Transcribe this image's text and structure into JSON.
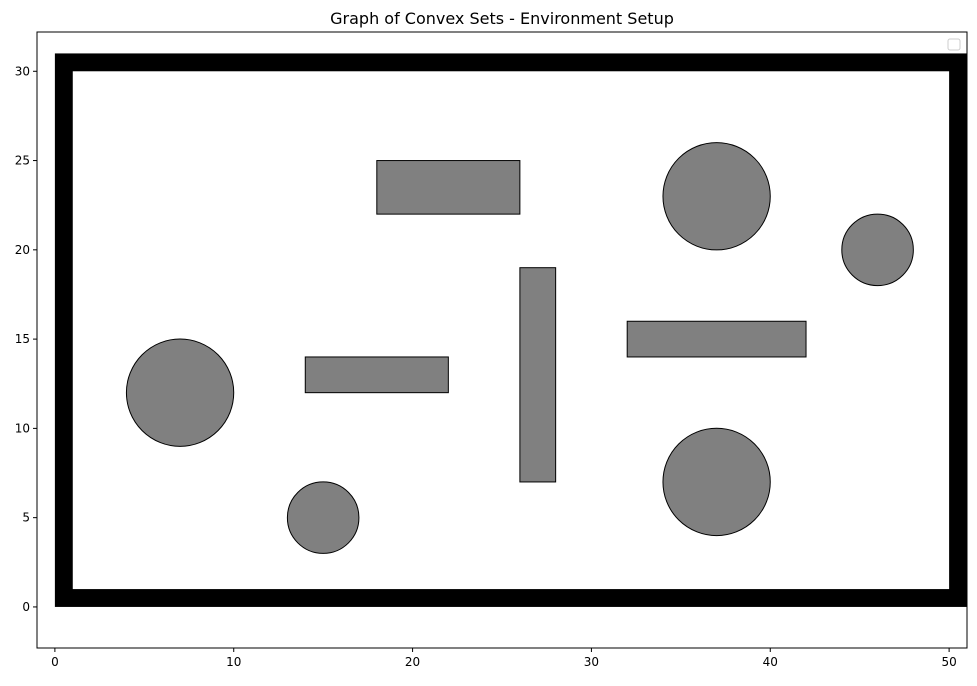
{
  "chart_data": {
    "type": "scatter",
    "title": "Graph of Convex Sets - Environment Setup",
    "xlabel": "",
    "ylabel": "",
    "xlim": [
      -1,
      51
    ],
    "ylim": [
      -2.3,
      32.2
    ],
    "x_ticks": [
      0,
      10,
      20,
      30,
      40,
      50
    ],
    "y_ticks": [
      0,
      5,
      10,
      15,
      20,
      25,
      30
    ],
    "grid": false,
    "legend": {
      "placement": "top-right",
      "entries": []
    },
    "boundary": {
      "outer": {
        "x": 0,
        "y": 0,
        "width": 51,
        "height": 31
      },
      "inner": {
        "x": 1,
        "y": 1,
        "width": 49,
        "height": 29
      },
      "color": "#000000"
    },
    "obstacle_style": {
      "fill": "#808080",
      "stroke": "#000000"
    },
    "rectangles": [
      {
        "x": 18,
        "y": 22,
        "width": 8,
        "height": 3
      },
      {
        "x": 26,
        "y": 7,
        "width": 2,
        "height": 12
      },
      {
        "x": 32,
        "y": 14,
        "width": 10,
        "height": 2
      },
      {
        "x": 14,
        "y": 12,
        "width": 8,
        "height": 2
      }
    ],
    "circles": [
      {
        "cx": 7,
        "cy": 12,
        "r": 3
      },
      {
        "cx": 15,
        "cy": 5,
        "r": 2
      },
      {
        "cx": 37,
        "cy": 23,
        "r": 3
      },
      {
        "cx": 37,
        "cy": 7,
        "r": 3
      },
      {
        "cx": 46,
        "cy": 20,
        "r": 2
      }
    ]
  }
}
